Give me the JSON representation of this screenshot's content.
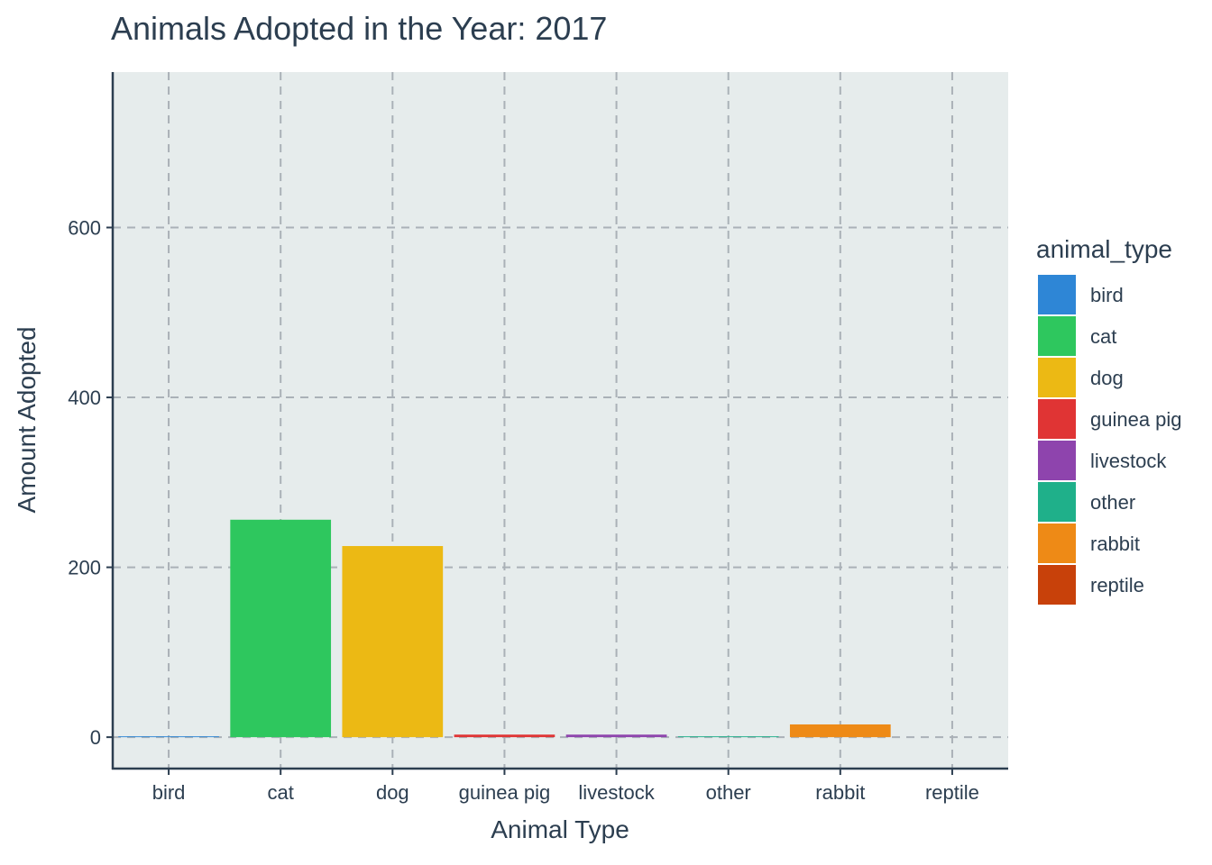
{
  "chart_data": {
    "type": "bar",
    "title": "Animals Adopted in the Year: 2017",
    "xlabel": "Animal Type",
    "ylabel": "Amount Adopted",
    "categories": [
      "bird",
      "cat",
      "dog",
      "guinea pig",
      "livestock",
      "other",
      "rabbit",
      "reptile"
    ],
    "values": [
      1,
      256,
      225,
      3,
      3,
      1,
      15,
      0
    ],
    "colors": [
      "#2e86d6",
      "#2ec75e",
      "#ecb914",
      "#e03434",
      "#8e44ad",
      "#1fb08a",
      "#ee8a16",
      "#c8410a"
    ],
    "ylim": [
      -37,
      783
    ],
    "yticks": [
      0,
      200,
      400,
      600
    ],
    "panel_background": "#e6ecec",
    "grid": true,
    "legend": {
      "title": "animal_type",
      "position": "right",
      "items": [
        "bird",
        "cat",
        "dog",
        "guinea pig",
        "livestock",
        "other",
        "rabbit",
        "reptile"
      ]
    }
  }
}
